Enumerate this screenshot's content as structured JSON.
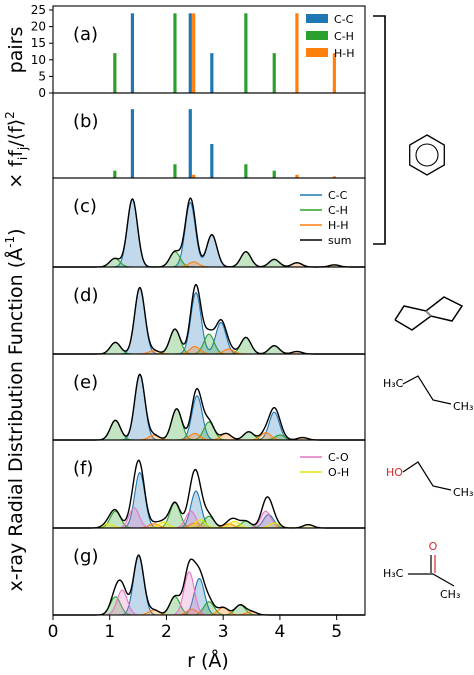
{
  "figure": {
    "xlabel": "r (Å)",
    "ylabel_main": "x-ray Radial Distribution Function (Å",
    "ylabel_sup": "-1",
    "ylabel_close": ")",
    "ylabel_top_pairs": "pairs",
    "ylabel_top_weight": "× f",
    "ylabel_top_weight_sub1": "i",
    "ylabel_top_weight_mid": "f",
    "ylabel_top_weight_sub2": "j",
    "ylabel_top_weight_end": "/⟨f⟩",
    "ylabel_top_weight_sup": "2",
    "xticks": [
      "0",
      "1",
      "2",
      "3",
      "4",
      "5"
    ],
    "xlim": [
      0,
      5.5
    ]
  },
  "colors": {
    "C-C": "#1f77b4",
    "C-H": "#2ca02c",
    "H-H": "#ff7f0e",
    "C-O": "#e377c2",
    "O-H": "#e6e600",
    "sum": "#000000",
    "oxygen": "#d62728"
  },
  "molecule_icons": [
    "benzene-icon",
    "cyclohexane-icon",
    "butane-icon",
    "propanol-icon",
    "acetone-icon"
  ],
  "molecule_labels": {
    "butane_left": "H₃C",
    "butane_right": "CH₃",
    "propanol_ho": "HO",
    "propanol_right": "CH₃",
    "acetone_left": "H₃C",
    "acetone_right": "CH₃",
    "acetone_o": "O"
  },
  "chart_data": [
    {
      "type": "bar",
      "panel_label": "(a)",
      "yticks": [
        0,
        5,
        10,
        15,
        20,
        25
      ],
      "ylim": [
        0,
        25
      ],
      "legend": [
        "C-C",
        "C-H",
        "H-H"
      ],
      "series": [
        {
          "name": "C-C",
          "x": [
            1.4,
            2.42,
            2.8
          ],
          "values": [
            24,
            24,
            12
          ]
        },
        {
          "name": "C-H",
          "x": [
            1.09,
            2.15,
            3.4,
            3.9
          ],
          "values": [
            12,
            24,
            24,
            12
          ]
        },
        {
          "name": "H-H",
          "x": [
            2.48,
            4.3,
            4.96
          ],
          "values": [
            24,
            24,
            12
          ]
        }
      ]
    },
    {
      "type": "bar",
      "panel_label": "(b)",
      "ylim": [
        0,
        10
      ],
      "series": [
        {
          "name": "C-C",
          "x": [
            1.4,
            2.42,
            2.8
          ],
          "values": [
            8.5,
            8.5,
            4.2
          ]
        },
        {
          "name": "C-H",
          "x": [
            1.09,
            2.15,
            3.4,
            3.9
          ],
          "values": [
            0.9,
            1.7,
            1.7,
            0.9
          ]
        },
        {
          "name": "H-H",
          "x": [
            2.48,
            4.3,
            4.96
          ],
          "values": [
            0.4,
            0.4,
            0.2
          ]
        }
      ]
    },
    {
      "type": "area",
      "panel_label": "(c)",
      "ylim": [
        0,
        10
      ],
      "legend": [
        "C-C",
        "C-H",
        "H-H",
        "sum"
      ],
      "sigma": 0.09,
      "series": [
        {
          "name": "C-C",
          "peaks": [
            [
              1.4,
              8.0
            ],
            [
              2.42,
              7.6
            ],
            [
              2.8,
              3.8
            ]
          ]
        },
        {
          "name": "C-H",
          "peaks": [
            [
              1.09,
              1.0
            ],
            [
              2.15,
              1.8
            ],
            [
              3.4,
              1.8
            ],
            [
              3.9,
              0.9
            ]
          ]
        },
        {
          "name": "H-H",
          "peaks": [
            [
              2.48,
              0.6
            ],
            [
              4.3,
              0.5
            ],
            [
              4.96,
              0.25
            ]
          ]
        }
      ]
    },
    {
      "type": "area",
      "panel_label": "(d)",
      "ylim": [
        0,
        10
      ],
      "sigma": 0.09,
      "series": [
        {
          "name": "C-C",
          "peaks": [
            [
              1.53,
              8.0
            ],
            [
              2.52,
              7.4
            ],
            [
              2.96,
              3.8
            ]
          ]
        },
        {
          "name": "C-H",
          "peaks": [
            [
              1.1,
              1.4
            ],
            [
              2.15,
              3.0
            ],
            [
              2.75,
              2.4
            ],
            [
              3.4,
              2.0
            ],
            [
              3.9,
              1.0
            ]
          ]
        },
        {
          "name": "H-H",
          "peaks": [
            [
              1.78,
              0.4
            ],
            [
              2.5,
              0.9
            ],
            [
              3.1,
              0.6
            ],
            [
              4.3,
              0.3
            ]
          ]
        }
      ]
    },
    {
      "type": "area",
      "panel_label": "(e)",
      "ylim": [
        0,
        10
      ],
      "sigma": 0.09,
      "series": [
        {
          "name": "C-C",
          "peaks": [
            [
              1.53,
              8.0
            ],
            [
              2.54,
              5.4
            ],
            [
              3.9,
              3.4
            ]
          ]
        },
        {
          "name": "C-H",
          "peaks": [
            [
              1.1,
              2.4
            ],
            [
              2.18,
              3.8
            ],
            [
              2.75,
              2.2
            ],
            [
              3.45,
              1.0
            ],
            [
              4.0,
              0.6
            ]
          ]
        },
        {
          "name": "H-H",
          "peaks": [
            [
              1.78,
              0.6
            ],
            [
              2.5,
              0.8
            ],
            [
              3.05,
              0.8
            ],
            [
              3.75,
              0.9
            ],
            [
              4.4,
              0.3
            ]
          ]
        }
      ]
    },
    {
      "type": "area",
      "panel_label": "(f)",
      "ylim": [
        0,
        10
      ],
      "legend": [
        "C-O",
        "O-H"
      ],
      "sigma": 0.09,
      "series": [
        {
          "name": "C-C",
          "peaks": [
            [
              1.53,
              6.6
            ],
            [
              2.52,
              4.4
            ],
            [
              3.8,
              1.6
            ]
          ]
        },
        {
          "name": "C-H",
          "peaks": [
            [
              1.1,
              2.0
            ],
            [
              2.15,
              3.0
            ],
            [
              2.75,
              1.4
            ],
            [
              3.4,
              0.8
            ]
          ]
        },
        {
          "name": "H-H",
          "peaks": [
            [
              1.78,
              0.5
            ],
            [
              2.5,
              0.6
            ],
            [
              3.1,
              0.5
            ]
          ]
        },
        {
          "name": "C-O",
          "peaks": [
            [
              1.43,
              2.4
            ],
            [
              2.43,
              2.0
            ],
            [
              3.75,
              2.0
            ]
          ]
        },
        {
          "name": "O-H",
          "peaks": [
            [
              0.97,
              0.5
            ],
            [
              1.95,
              0.7
            ],
            [
              2.6,
              1.0
            ],
            [
              3.2,
              0.8
            ],
            [
              3.9,
              0.6
            ],
            [
              4.5,
              0.4
            ]
          ]
        }
      ]
    },
    {
      "type": "area",
      "panel_label": "(g)",
      "ylim": [
        0,
        10
      ],
      "sigma": 0.09,
      "series": [
        {
          "name": "C-C",
          "peaks": [
            [
              1.51,
              7.2
            ],
            [
              2.58,
              4.4
            ]
          ]
        },
        {
          "name": "C-H",
          "peaks": [
            [
              1.1,
              2.2
            ],
            [
              2.15,
              2.2
            ],
            [
              2.75,
              1.6
            ],
            [
              3.3,
              1.2
            ]
          ]
        },
        {
          "name": "H-H",
          "peaks": [
            [
              1.78,
              0.6
            ],
            [
              2.45,
              0.7
            ],
            [
              3.0,
              0.9
            ],
            [
              3.5,
              0.4
            ]
          ]
        },
        {
          "name": "C-O",
          "peaks": [
            [
              1.22,
              3.0
            ],
            [
              2.4,
              5.2
            ]
          ]
        }
      ]
    }
  ]
}
